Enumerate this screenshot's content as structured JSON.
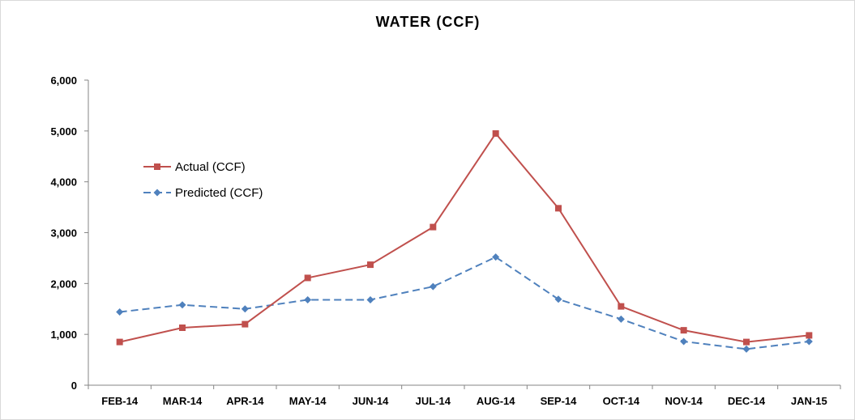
{
  "chart_data": {
    "type": "line",
    "title": "WATER (CCF)",
    "xlabel": "",
    "ylabel": "",
    "categories": [
      "FEB-14",
      "MAR-14",
      "APR-14",
      "MAY-14",
      "JUN-14",
      "JUL-14",
      "AUG-14",
      "SEP-14",
      "OCT-14",
      "NOV-14",
      "DEC-14",
      "JAN-15"
    ],
    "y_ticks": [
      "0",
      "1,000",
      "2,000",
      "3,000",
      "4,000",
      "5,000",
      "6,000"
    ],
    "ylim": [
      0,
      6000
    ],
    "grid": false,
    "legend_position": "upper-left",
    "series": [
      {
        "name": "Actual (CCF)",
        "color": "#c0504d",
        "marker": "square",
        "line_style": "solid",
        "values": [
          850,
          1130,
          1200,
          2110,
          2370,
          3110,
          4950,
          3480,
          1550,
          1080,
          850,
          980
        ]
      },
      {
        "name": "Predicted (CCF)",
        "color": "#4f81bd",
        "marker": "diamond",
        "line_style": "dashed",
        "values": [
          1440,
          1580,
          1500,
          1680,
          1680,
          1940,
          2520,
          1690,
          1300,
          860,
          710,
          860
        ]
      }
    ]
  }
}
